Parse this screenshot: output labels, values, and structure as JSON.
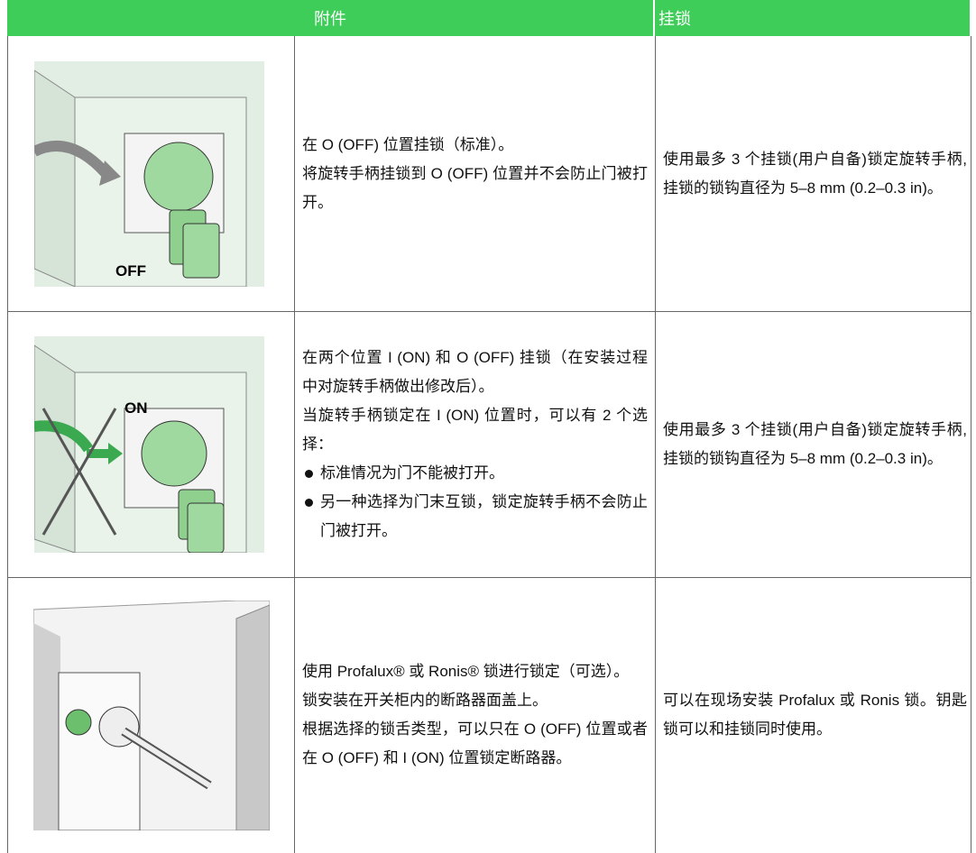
{
  "table": {
    "header": [
      "附件",
      "挂锁"
    ],
    "rows": [
      {
        "image_label": "OFF",
        "description": [
          "在 O (OFF) 位置挂锁（标准）。",
          "将旋转手柄挂锁到 O (OFF) 位置并不会防止门被打开。"
        ],
        "bullets": [],
        "padlock": "使用最多 3 个挂锁(用户自备)锁定旋转手柄, 挂锁的锁钩直径为 5–8 mm (0.2–0.3 in)。"
      },
      {
        "image_label": "ON",
        "description": [
          "在两个位置 I (ON) 和 O (OFF) 挂锁（在安装过程中对旋转手柄做出修改后）。",
          "当旋转手柄锁定在 I (ON) 位置时，可以有 2 个选择："
        ],
        "bullets": [
          "标准情况为门不能被打开。",
          "另一种选择为门末互锁，锁定旋转手柄不会防止门被打开。"
        ],
        "padlock": "使用最多 3 个挂锁(用户自备)锁定旋转手柄, 挂锁的锁钩直径为 5–8 mm (0.2–0.3 in)。"
      },
      {
        "description": [
          "使用 Profalux® 或 Ronis® 锁进行锁定（可选）。",
          "锁安装在开关柜内的断路器面盖上。",
          "根据选择的锁舌类型，可以只在 O (OFF) 位置或者在 O (OFF) 和 I (ON) 位置锁定断路器。"
        ],
        "bullets": [],
        "padlock": "可以在现场安装 Profalux 或 Ronis 锁。钥匙锁可以和挂锁同时使用。"
      }
    ]
  }
}
